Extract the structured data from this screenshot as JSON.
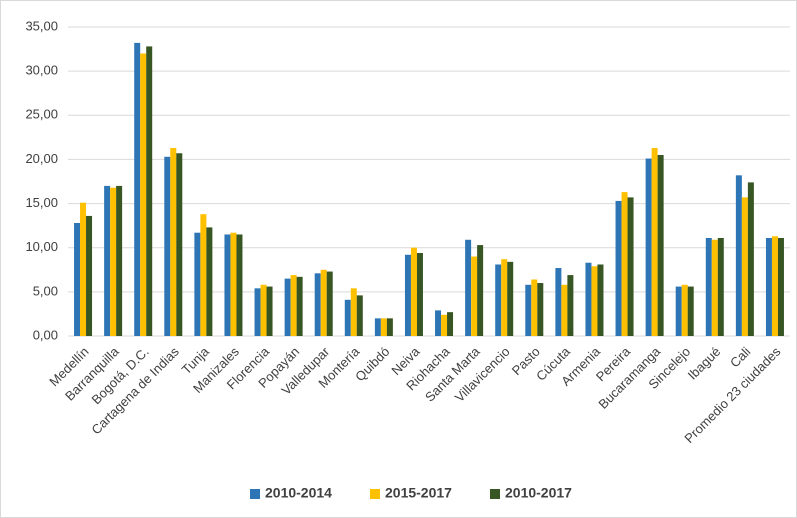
{
  "chart_data": {
    "type": "bar",
    "categories": [
      "Medellín",
      "Barranquilla",
      "Bogotá, D.C.",
      "Cartagena de Indias",
      "Tunja",
      "Manizales",
      "Florencia",
      "Popayán",
      "Valledupar",
      "Montería",
      "Quibdó",
      "Neiva",
      "Riohacha",
      "Santa Marta",
      "Villavicencio",
      "Pasto",
      "Cúcuta",
      "Armenia",
      "Pereira",
      "Bucaramanga",
      "Sincelejo",
      "Ibagué",
      "Cali",
      "Promedio 23 ciudades"
    ],
    "series": [
      {
        "name": "2010-2014",
        "color": "#2e75b6",
        "values": [
          12.8,
          17.0,
          33.2,
          20.3,
          11.7,
          11.5,
          5.4,
          6.5,
          7.1,
          4.1,
          2.0,
          9.2,
          2.9,
          10.9,
          8.1,
          5.8,
          7.7,
          8.3,
          15.3,
          20.1,
          5.6,
          11.1,
          18.2,
          11.1
        ]
      },
      {
        "name": "2015-2017",
        "color": "#ffc000",
        "values": [
          15.1,
          16.8,
          32.0,
          21.3,
          13.8,
          11.7,
          5.8,
          6.9,
          7.5,
          5.4,
          2.0,
          10.0,
          2.4,
          9.0,
          8.7,
          6.4,
          5.8,
          7.9,
          16.3,
          21.3,
          5.8,
          10.9,
          15.7,
          11.3
        ]
      },
      {
        "name": "2010-2017",
        "color": "#375623",
        "values": [
          13.6,
          17.0,
          32.8,
          20.7,
          12.3,
          11.5,
          5.6,
          6.7,
          7.3,
          4.6,
          2.0,
          9.4,
          2.7,
          10.3,
          8.4,
          6.0,
          6.9,
          8.1,
          15.7,
          20.5,
          5.6,
          11.1,
          17.4,
          11.1
        ]
      }
    ],
    "ylim": [
      0,
      35
    ],
    "yticks": [
      {
        "value": 0,
        "label": "0,00"
      },
      {
        "value": 5,
        "label": "5,00"
      },
      {
        "value": 10,
        "label": "10,00"
      },
      {
        "value": 15,
        "label": "15,00"
      },
      {
        "value": 20,
        "label": "20,00"
      },
      {
        "value": 25,
        "label": "25,00"
      },
      {
        "value": 30,
        "label": "30,00"
      },
      {
        "value": 35,
        "label": "35,00"
      }
    ],
    "grid": true,
    "legend": "bottom"
  }
}
